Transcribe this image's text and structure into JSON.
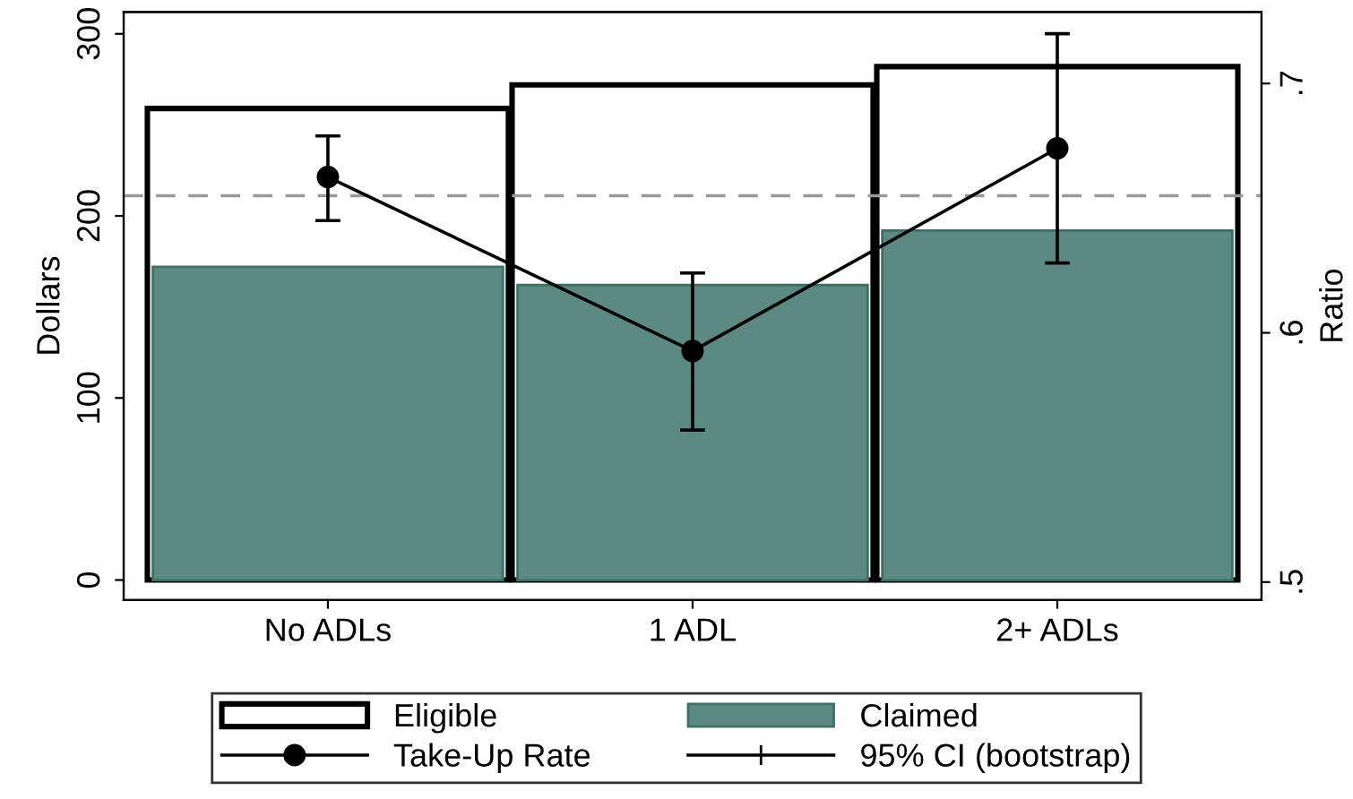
{
  "chart_data": {
    "type": "bar",
    "categories": [
      "No ADLs",
      "1 ADL",
      "2+ ADLs"
    ],
    "ylabel": "Dollars",
    "y2label": "Ratio",
    "ylim": [
      -11,
      312
    ],
    "yticks": [
      0,
      100,
      200,
      300
    ],
    "y2lim": [
      0.4928,
      0.7287
    ],
    "y2ticks": [
      {
        "value": 0.5,
        "label": ".5"
      },
      {
        "value": 0.6,
        "label": ".6"
      },
      {
        "value": 0.7,
        "label": ".7"
      }
    ],
    "series": [
      {
        "name": "Eligible",
        "color": "#ffffff",
        "values": [
          259,
          272,
          282
        ]
      },
      {
        "name": "Claimed",
        "color": "#5a8a82",
        "values": [
          172,
          162,
          192
        ]
      },
      {
        "name": "Take-Up Rate",
        "type": "line",
        "axis": "y2",
        "color": "#000000",
        "marker": "circle",
        "values": [
          0.6625,
          0.5927,
          0.674
        ],
        "errors": [
          [
            0.645,
            0.679
          ],
          [
            0.561,
            0.624
          ],
          [
            0.628,
            0.72
          ]
        ]
      }
    ],
    "ref_lines": [
      {
        "axis": "y2",
        "value": 0.655,
        "color": "#999999",
        "line_style": "dashed"
      }
    ],
    "annotations": [
      "95% CI (bootstrap)"
    ],
    "legend": "bottom",
    "grid": false
  }
}
